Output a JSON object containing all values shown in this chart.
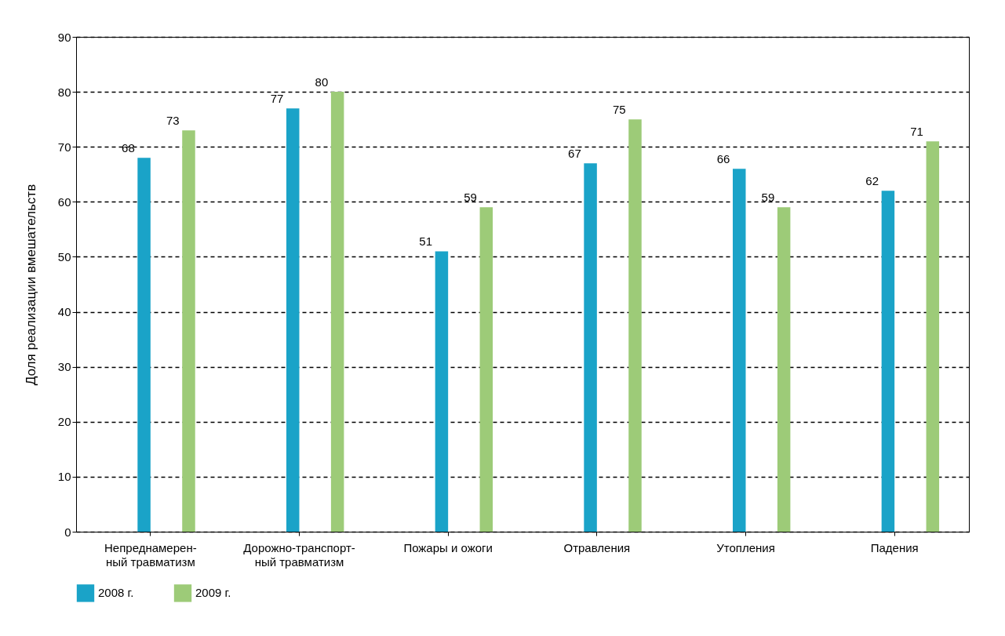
{
  "chart_data": {
    "type": "bar",
    "ylabel": "Доля реализации вмешательств",
    "categories": [
      "Непреднамерен-\nный травматизм",
      "Дорожно-транспорт-\nный травматизм",
      "Пожары и ожоги",
      "Отравления",
      "Утопления",
      "Падения"
    ],
    "series": [
      {
        "name": "2008 г.",
        "color": "#1aa3c8",
        "values": [
          68,
          77,
          51,
          67,
          66,
          62
        ]
      },
      {
        "name": "2009 г.",
        "color": "#9dcb78",
        "values": [
          73,
          80,
          59,
          75,
          59,
          71
        ]
      }
    ],
    "ylim": [
      0,
      90
    ],
    "yticks": [
      0,
      10,
      20,
      30,
      40,
      50,
      60,
      70,
      80,
      90
    ],
    "grid": "y",
    "legend": "bottom left",
    "data_labels": true
  }
}
